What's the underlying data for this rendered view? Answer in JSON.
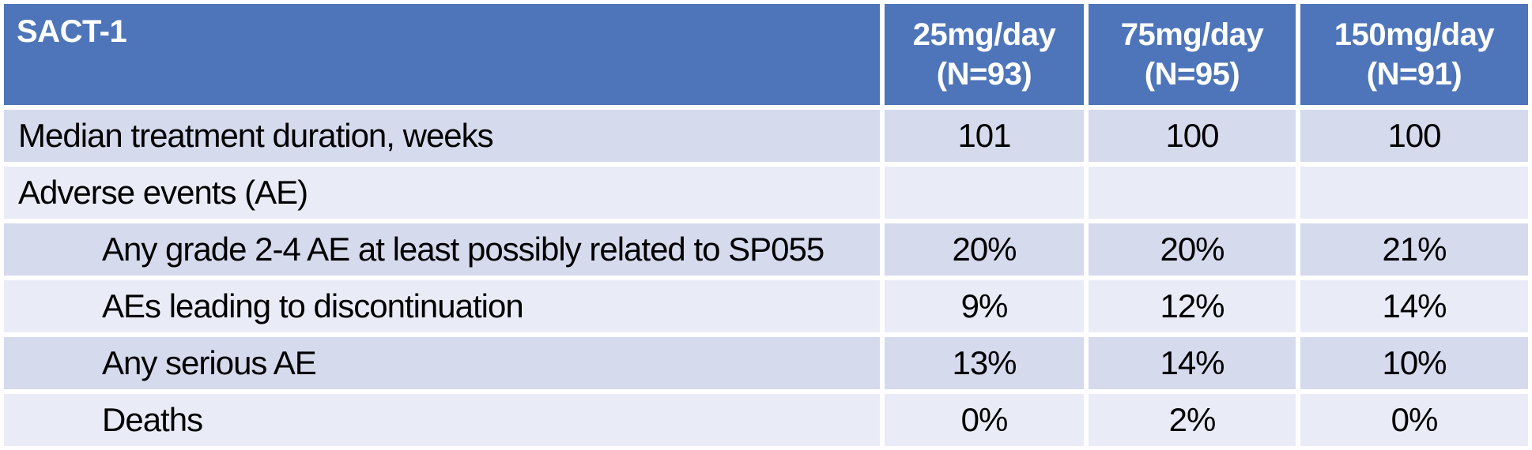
{
  "header": {
    "title": "SACT-1",
    "columns": [
      {
        "line1": "25mg/day",
        "line2": "(N=93)"
      },
      {
        "line1": "75mg/day",
        "line2": "(N=95)"
      },
      {
        "line1": "150mg/day",
        "line2": "(N=91)"
      }
    ]
  },
  "rows": [
    {
      "label": "Median treatment duration, weeks",
      "indent": false,
      "values": [
        "101",
        "100",
        "100"
      ]
    },
    {
      "label": "Adverse events (AE)",
      "indent": false,
      "values": [
        "",
        "",
        ""
      ]
    },
    {
      "label": "Any grade 2-4 AE at least possibly related to SP055",
      "indent": true,
      "values": [
        "20%",
        "20%",
        "21%"
      ]
    },
    {
      "label": "AEs leading to discontinuation",
      "indent": true,
      "values": [
        "9%",
        "12%",
        "14%"
      ]
    },
    {
      "label": "Any serious AE",
      "indent": true,
      "values": [
        "13%",
        "14%",
        "10%"
      ]
    },
    {
      "label": "Deaths",
      "indent": true,
      "values": [
        "0%",
        "2%",
        "0%"
      ]
    }
  ],
  "colors": {
    "header_bg": "#4E75B9",
    "header_text": "#FFFFFF",
    "row_band_dark": "#D5DAED",
    "row_band_light": "#E9ECF6",
    "separator": "#FFFFFF",
    "body_text": "#000000"
  }
}
